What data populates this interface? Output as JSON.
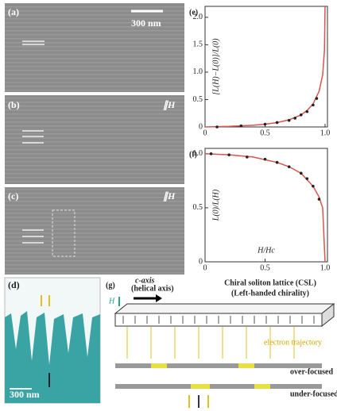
{
  "panels": {
    "a": {
      "label": "(a)",
      "scale_bar": "300 nm"
    },
    "b": {
      "label": "(b)",
      "field": "∥H"
    },
    "c": {
      "label": "(c)",
      "field": "∥H"
    },
    "d": {
      "label": "(d)",
      "scale_bar": "300 nm"
    },
    "g": {
      "label": "(g)",
      "axis": "c-axis",
      "axis_note": "(helical axis)",
      "field": "H",
      "title": "Chiral soliton lattice (CSL)",
      "subtitle": "(Left-handed chirality)",
      "trajectory": "electron trajectory",
      "over": "over-focused",
      "under": "under-focused"
    }
  },
  "charts": [
    {
      "type": "line",
      "label": "(e)",
      "y_label": "[L(H)−L(0)]/L(0)",
      "xlim": [
        0,
        1.02
      ],
      "ylim": [
        0,
        2.2
      ],
      "xticks": [
        0,
        0.5,
        {
          "value": 1,
          "label": "1.0"
        }
      ],
      "yticks": [
        0,
        0.5,
        {
          "value": 1,
          "label": "1.0"
        },
        1.5,
        {
          "value": 2,
          "label": "2.0"
        }
      ],
      "curve": {
        "color": "#d9534f",
        "x": [
          0,
          0.2,
          0.4,
          0.5,
          0.6,
          0.7,
          0.8,
          0.85,
          0.9,
          0.95,
          0.98,
          0.995,
          1.0
        ],
        "values": [
          0,
          0.01,
          0.03,
          0.05,
          0.08,
          0.13,
          0.22,
          0.3,
          0.42,
          0.65,
          0.95,
          1.4,
          2.2
        ]
      },
      "points": {
        "color": "#222222",
        "x": [
          0.1,
          0.3,
          0.5,
          0.6,
          0.7,
          0.75,
          0.8,
          0.85,
          0.9,
          0.93
        ],
        "values": [
          0,
          0.02,
          0.05,
          0.08,
          0.12,
          0.16,
          0.22,
          0.28,
          0.4,
          0.52
        ]
      }
    },
    {
      "type": "line",
      "label": "(f)",
      "y_label": "L(0)/L(H)",
      "x_label": "H/Hc",
      "xlim": [
        0,
        1.02
      ],
      "ylim": [
        0,
        1.05
      ],
      "xticks": [
        0,
        0.5,
        {
          "value": 1,
          "label": "1.0"
        }
      ],
      "yticks": [
        0,
        0.5,
        {
          "value": 1,
          "label": "1.0"
        }
      ],
      "curve": {
        "color": "#d9534f",
        "x": [
          0,
          0.2,
          0.4,
          0.6,
          0.7,
          0.8,
          0.9,
          0.95,
          0.98,
          1.0
        ],
        "values": [
          1,
          0.99,
          0.97,
          0.92,
          0.88,
          0.82,
          0.7,
          0.6,
          0.5,
          0
        ]
      },
      "points": {
        "color": "#222222",
        "x": [
          0.05,
          0.2,
          0.35,
          0.5,
          0.6,
          0.7,
          0.8,
          0.85,
          0.9,
          0.95
        ],
        "values": [
          1,
          0.99,
          0.97,
          0.95,
          0.92,
          0.88,
          0.82,
          0.77,
          0.7,
          0.58
        ]
      }
    }
  ]
}
